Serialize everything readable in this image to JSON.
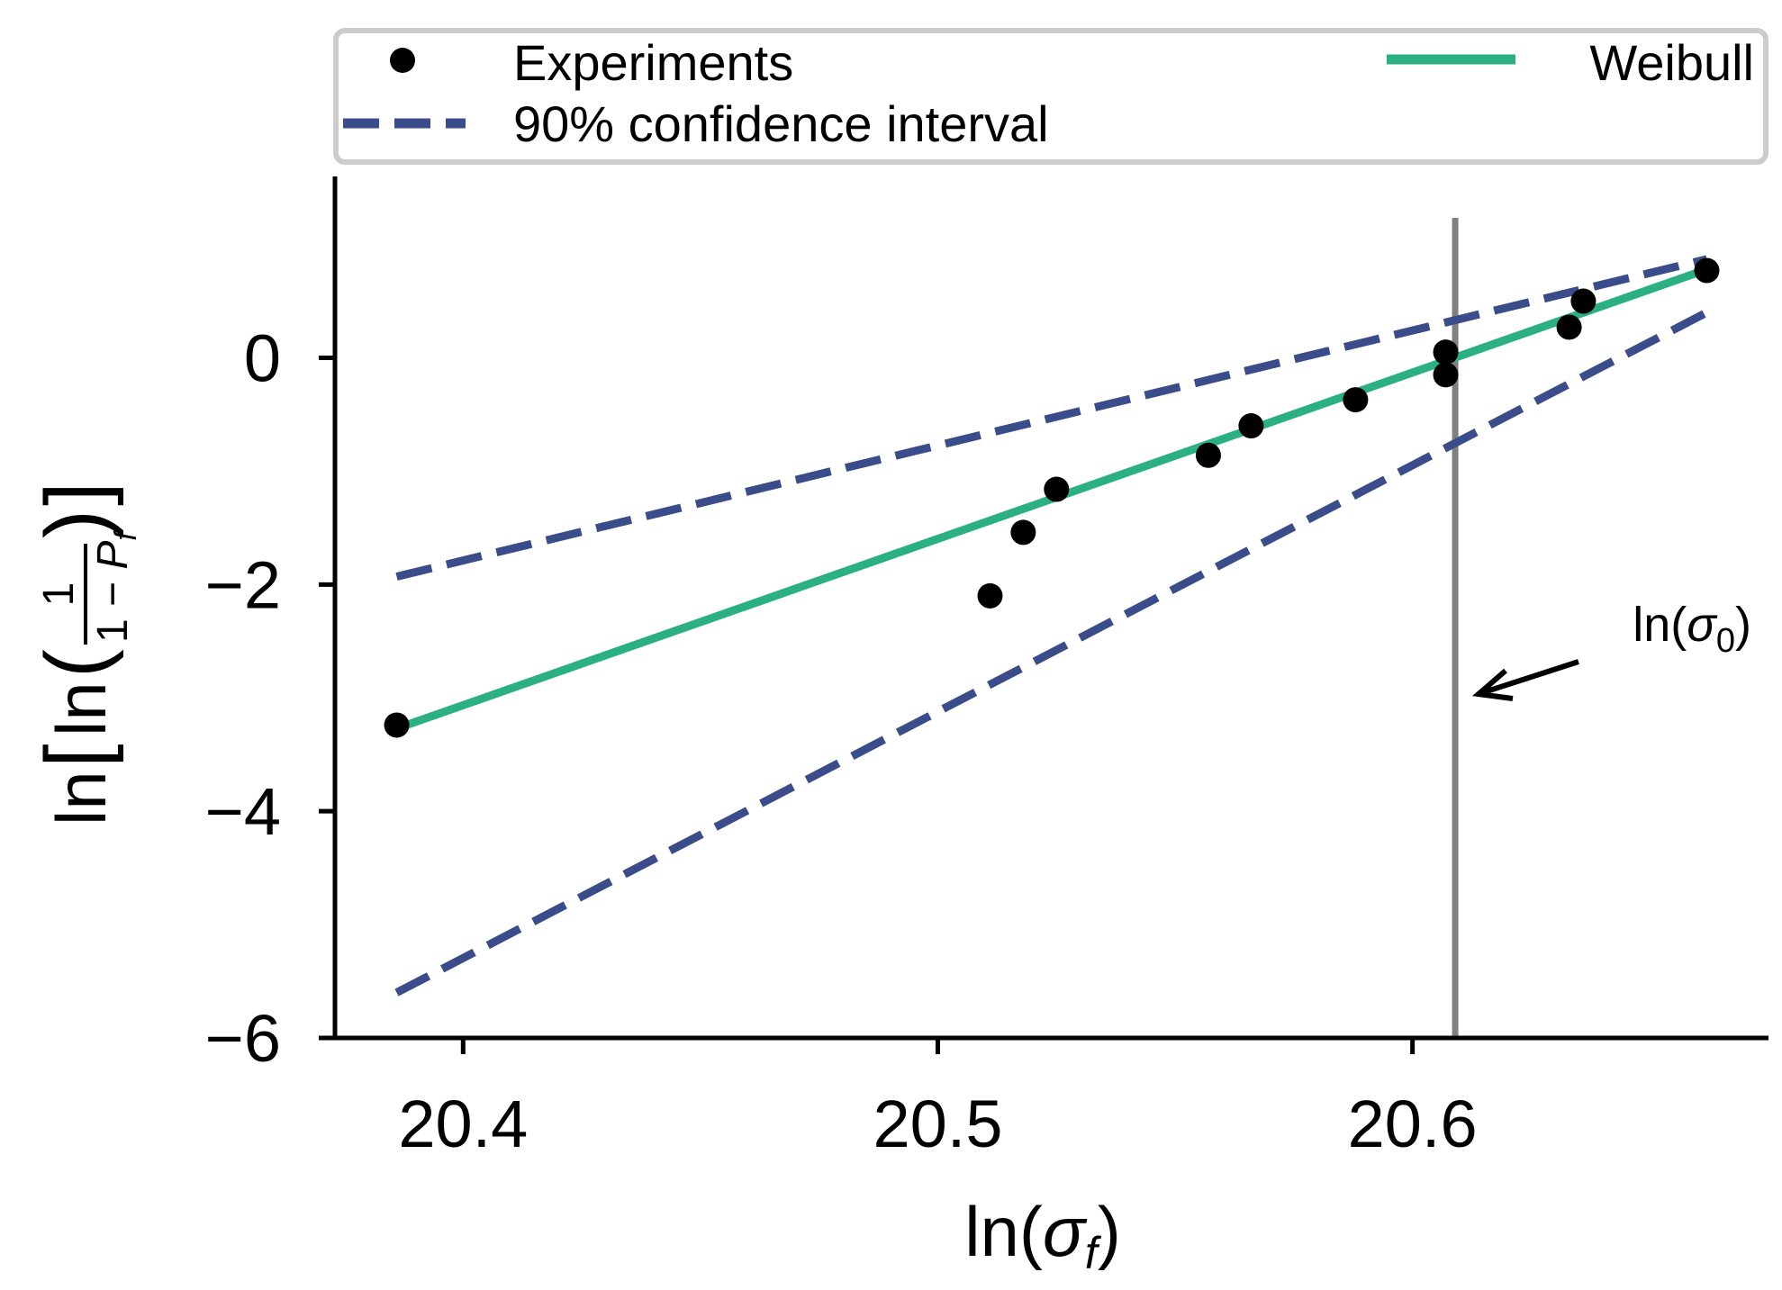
{
  "chart_data": {
    "type": "scatter",
    "title": "",
    "xlabel": {
      "prefix": "ln(",
      "symbol": "σ",
      "sub": "f",
      "suffix": ")"
    },
    "ylabel": {
      "outer": "ln",
      "inner": "ln",
      "numerator": "1",
      "denominator_prefix": "1 − ",
      "denominator_symbol": "P",
      "denominator_sub": "f"
    },
    "xlim": [
      20.373,
      20.675
    ],
    "ylim": [
      -6,
      1.6
    ],
    "xticks": [
      20.4,
      20.5,
      20.6
    ],
    "xtick_labels": [
      "20.4",
      "20.5",
      "20.6"
    ],
    "yticks": [
      0,
      -2,
      -4,
      -6
    ],
    "ytick_labels": [
      "0",
      "−2",
      "−4",
      "−6"
    ],
    "grid": false,
    "legend_position": "top",
    "series": [
      {
        "name": "Experiments",
        "kind": "points",
        "color": "#000000",
        "x": [
          20.386,
          20.511,
          20.518,
          20.525,
          20.557,
          20.566,
          20.588,
          20.607,
          20.607,
          20.633,
          20.636,
          20.662
        ],
        "y": [
          -3.24,
          -2.1,
          -1.54,
          -1.16,
          -0.86,
          -0.6,
          -0.37,
          -0.15,
          0.05,
          0.27,
          0.5,
          0.77
        ]
      },
      {
        "name": "Weibull",
        "kind": "line",
        "color": "#2ab082",
        "x": [
          20.386,
          20.662
        ],
        "y": [
          -3.27,
          0.78
        ]
      },
      {
        "name": "90% confidence interval",
        "kind": "dashed-line",
        "color": "#3b4c8a",
        "segments": [
          {
            "x": [
              20.386,
              20.662
            ],
            "y": [
              -1.93,
              0.87
            ]
          },
          {
            "x": [
              20.386,
              20.662
            ],
            "y": [
              -5.6,
              0.4
            ]
          }
        ]
      }
    ],
    "reference_line": {
      "label": "ln(σ0)",
      "x": 20.609,
      "color": "#808080"
    },
    "annotation": {
      "prefix": "ln(",
      "symbol": "σ",
      "sub": "0",
      "suffix": ")",
      "arrow_color": "#000000"
    }
  }
}
